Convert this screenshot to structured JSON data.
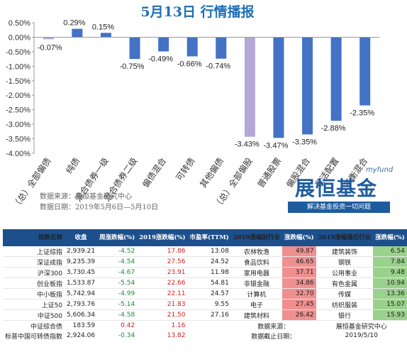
{
  "title": "5月13日  行情播报",
  "chart_data": {
    "type": "bar",
    "categories": [
      "（总）全部偏债",
      "纯债",
      "混合债券一级",
      "混合债券二级",
      "偏债混合",
      "可转债",
      "其他偏债",
      "（总）全部偏股",
      "普通股票",
      "偏股混合",
      "灵活配置",
      "平衡混合"
    ],
    "values": [
      -0.07,
      0.29,
      0.15,
      -0.75,
      -0.49,
      -0.66,
      -0.74,
      -3.43,
      -3.47,
      -3.35,
      -2.88,
      -2.35
    ],
    "value_labels": [
      "-0.07%",
      "0.29%",
      "0.15%",
      "-0.75%",
      "-0.49%",
      "-0.66%",
      "-0.74%",
      "-3.43%",
      "-3.47%",
      "-3.35%",
      "-2.88%",
      "-2.35%"
    ],
    "ylim": [
      -4.0,
      0.5
    ],
    "yticks": [
      "0.50%",
      "0.00%",
      "-0.50%",
      "-1.00%",
      "-1.50%",
      "-2.00%",
      "-2.50%",
      "-3.00%",
      "-3.50%",
      "-4.00%"
    ],
    "colors": {
      "bond": "#4472c4",
      "highlight": "#b4a7d6"
    },
    "grid": false,
    "legend": "none"
  },
  "source": {
    "line1": "数据来源：展恒基金研究中心",
    "line2": "数据日期：2019年5月6日—5月10日"
  },
  "brand": {
    "en": "myfund",
    "name": "展恒基金",
    "slogan": "解决基金投资一切问题"
  },
  "table": {
    "headers": [
      "指数名称",
      "收盘",
      "周涨跌幅(%)",
      "2019涨跌幅(%)",
      "市盈率(TTM)",
      "2019涨幅前行业",
      "涨跌幅(%)",
      "2019涨幅落后行业",
      "涨跌幅(%)"
    ],
    "rows": [
      {
        "name": "上证综指",
        "close": "2,939.21",
        "week": "-4.52",
        "ytd": "17.86",
        "pe": "13.08",
        "top": "农林牧渔",
        "top_v": "49.87",
        "bot": "建筑装饰",
        "bot_v": "6.54"
      },
      {
        "name": "深证成指",
        "close": "9,235.39",
        "week": "-4.54",
        "ytd": "27.56",
        "pe": "24.52",
        "top": "食品饮料",
        "top_v": "46.65",
        "bot": "钢铁",
        "bot_v": "7.84"
      },
      {
        "name": "沪深300",
        "close": "3,730.45",
        "week": "-4.67",
        "ytd": "23.91",
        "pe": "11.98",
        "top": "家用电器",
        "top_v": "37.71",
        "bot": "公用事业",
        "bot_v": "9.48"
      },
      {
        "name": "创业板指",
        "close": "1,533.87",
        "week": "-5.54",
        "ytd": "22.66",
        "pe": "54.81",
        "top": "非银金融",
        "top_v": "34.86",
        "bot": "有色金属",
        "bot_v": "10.94"
      },
      {
        "name": "中小板指",
        "close": "5,742.94",
        "week": "-4.99",
        "ytd": "22.11",
        "pe": "24.57",
        "top": "计算机",
        "top_v": "32.70",
        "bot": "传媒",
        "bot_v": "13.36"
      },
      {
        "name": "上证50",
        "close": "2,793.76",
        "week": "-5.14",
        "ytd": "21.83",
        "pe": "9.55",
        "top": "电子",
        "top_v": "27.45",
        "bot": "纺织服装",
        "bot_v": "15.07"
      },
      {
        "name": "中证500",
        "close": "5,606.34",
        "week": "-4.58",
        "ytd": "21.50",
        "pe": "27.16",
        "top": "建筑材料",
        "top_v": "26.42",
        "bot": "银行",
        "bot_v": "15.93"
      }
    ],
    "extra_rows": [
      {
        "name": "中证综合债",
        "close": "183.59",
        "week": "0.42",
        "ytd": "1.16"
      },
      {
        "name": "标普中国可转债指数",
        "close": "2,924.06",
        "week": "-0.34",
        "ytd": "13.82"
      }
    ],
    "note1_label": "数据来源：",
    "note1_value": "展恒基金研究中心",
    "note2_label": "数据截止日期：",
    "note2_value": "2019/5/10"
  }
}
